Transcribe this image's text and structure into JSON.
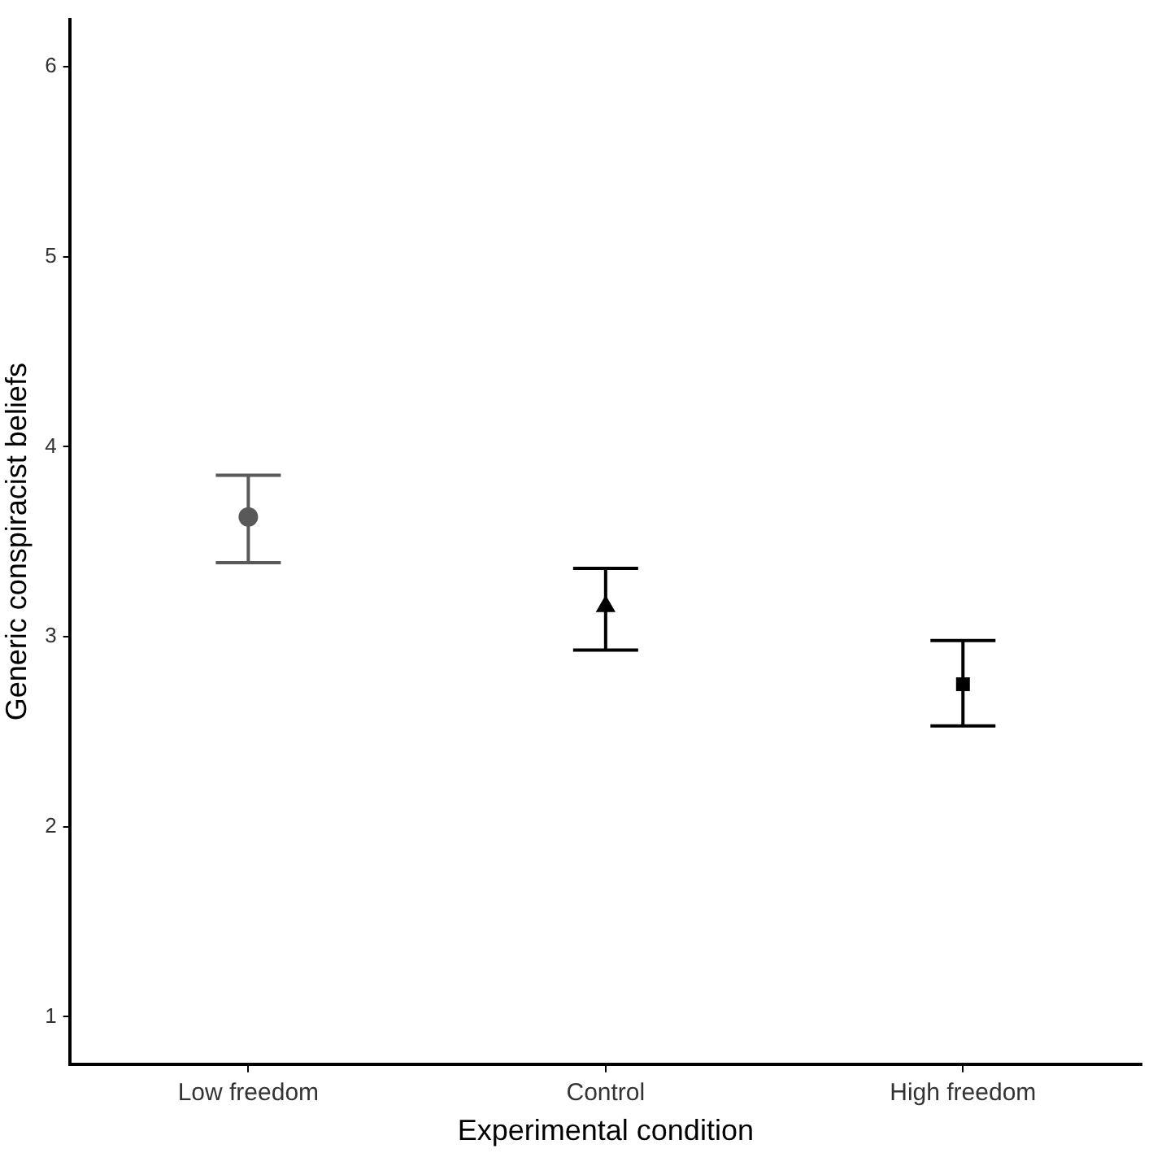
{
  "chart_data": {
    "type": "scatter",
    "xlabel": "Experimental condition",
    "ylabel": "Generic conspiracist beliefs",
    "categories": [
      "Low freedom",
      "Control",
      "High freedom"
    ],
    "ylim": [
      0.75,
      6.25
    ],
    "yticks": [
      1,
      2,
      3,
      4,
      5,
      6
    ],
    "grid": false,
    "legend": false,
    "series": [
      {
        "color": "#595959",
        "marker": "circle",
        "values": [
          3.63,
          null,
          null
        ],
        "errors": [
          [
            3.39,
            3.85
          ],
          null,
          null
        ]
      },
      {
        "color": "#000000",
        "marker": "triangle",
        "values": [
          null,
          3.16,
          null
        ],
        "errors": [
          null,
          [
            2.93,
            3.36
          ],
          null
        ]
      },
      {
        "color": "#000000",
        "marker": "square",
        "values": [
          null,
          null,
          2.75
        ],
        "errors": [
          null,
          null,
          [
            2.53,
            2.98
          ]
        ]
      }
    ]
  }
}
